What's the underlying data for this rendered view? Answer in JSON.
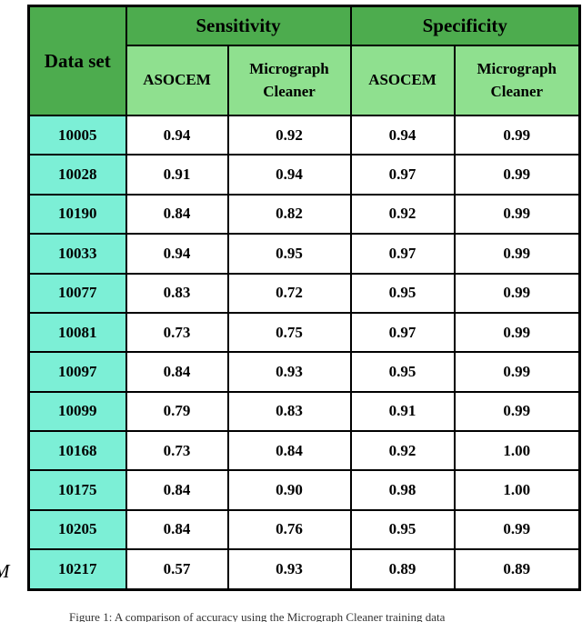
{
  "page": {
    "margin_letter": "M",
    "caption": "Figure 1: A comparison of accuracy using the Micrograph Cleaner training data"
  },
  "colors": {
    "header_green": "#4dac4e",
    "subheader_green": "#8fe08f",
    "dataset_teal": "#7cefd6",
    "border": "#000000"
  },
  "table": {
    "corner_label": "Data set",
    "groups": [
      {
        "label": "Sensitivity",
        "columns": [
          "ASOCEM",
          "Micrograph Cleaner"
        ]
      },
      {
        "label": "Specificity",
        "columns": [
          "ASOCEM",
          "Micrograph Cleaner"
        ]
      }
    ],
    "rows": [
      {
        "dataset": "10005",
        "values": [
          "0.94",
          "0.92",
          "0.94",
          "0.99"
        ]
      },
      {
        "dataset": "10028",
        "values": [
          "0.91",
          "0.94",
          "0.97",
          "0.99"
        ]
      },
      {
        "dataset": "10190",
        "values": [
          "0.84",
          "0.82",
          "0.92",
          "0.99"
        ]
      },
      {
        "dataset": "10033",
        "values": [
          "0.94",
          "0.95",
          "0.97",
          "0.99"
        ]
      },
      {
        "dataset": "10077",
        "values": [
          "0.83",
          "0.72",
          "0.95",
          "0.99"
        ]
      },
      {
        "dataset": "10081",
        "values": [
          "0.73",
          "0.75",
          "0.97",
          "0.99"
        ]
      },
      {
        "dataset": "10097",
        "values": [
          "0.84",
          "0.93",
          "0.95",
          "0.99"
        ]
      },
      {
        "dataset": "10099",
        "values": [
          "0.79",
          "0.83",
          "0.91",
          "0.99"
        ]
      },
      {
        "dataset": "10168",
        "values": [
          "0.73",
          "0.84",
          "0.92",
          "1.00"
        ]
      },
      {
        "dataset": "10175",
        "values": [
          "0.84",
          "0.90",
          "0.98",
          "1.00"
        ]
      },
      {
        "dataset": "10205",
        "values": [
          "0.84",
          "0.76",
          "0.95",
          "0.99"
        ]
      },
      {
        "dataset": "10217",
        "values": [
          "0.57",
          "0.93",
          "0.89",
          "0.89"
        ]
      }
    ]
  },
  "chart_data": {
    "type": "table",
    "title": "Sensitivity and Specificity of ASOCEM vs Micrograph Cleaner per data set",
    "columns": [
      "Data set",
      "Sensitivity ASOCEM",
      "Sensitivity Micrograph Cleaner",
      "Specificity ASOCEM",
      "Specificity Micrograph Cleaner"
    ],
    "rows": [
      [
        "10005",
        0.94,
        0.92,
        0.94,
        0.99
      ],
      [
        "10028",
        0.91,
        0.94,
        0.97,
        0.99
      ],
      [
        "10190",
        0.84,
        0.82,
        0.92,
        0.99
      ],
      [
        "10033",
        0.94,
        0.95,
        0.97,
        0.99
      ],
      [
        "10077",
        0.83,
        0.72,
        0.95,
        0.99
      ],
      [
        "10081",
        0.73,
        0.75,
        0.97,
        0.99
      ],
      [
        "10097",
        0.84,
        0.93,
        0.95,
        0.99
      ],
      [
        "10099",
        0.79,
        0.83,
        0.91,
        0.99
      ],
      [
        "10168",
        0.73,
        0.84,
        0.92,
        1.0
      ],
      [
        "10175",
        0.84,
        0.9,
        0.98,
        1.0
      ],
      [
        "10205",
        0.84,
        0.76,
        0.95,
        0.99
      ],
      [
        "10217",
        0.57,
        0.93,
        0.89,
        0.89
      ]
    ]
  }
}
